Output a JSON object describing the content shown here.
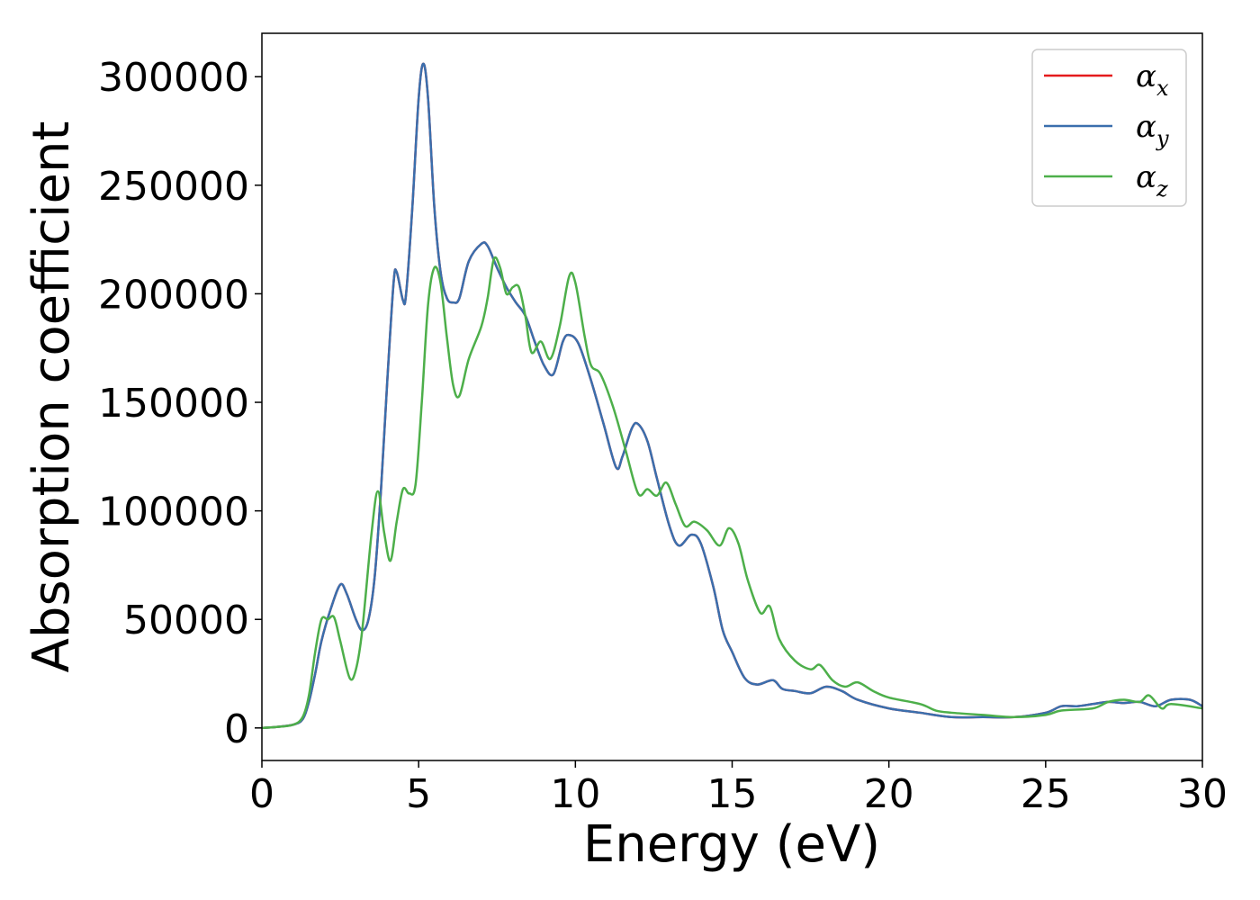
{
  "chart_data": {
    "type": "line",
    "title": "",
    "xlabel": "Energy (eV)",
    "ylabel": "Absorption coefficient",
    "xlim": [
      0,
      30
    ],
    "ylim": [
      -15000,
      320000
    ],
    "xticks": [
      0,
      5,
      10,
      15,
      20,
      25,
      30
    ],
    "yticks": [
      0,
      50000,
      100000,
      150000,
      200000,
      250000,
      300000
    ],
    "grid": false,
    "legend_position": "top-right",
    "legend_symbol": "α",
    "series": [
      {
        "name": "x",
        "color": "#e41a1c",
        "points": [
          [
            0,
            0
          ],
          [
            0.5,
            500
          ],
          [
            1,
            1500
          ],
          [
            1.3,
            4000
          ],
          [
            1.5,
            12000
          ],
          [
            1.7,
            25000
          ],
          [
            1.9,
            40000
          ],
          [
            2.2,
            55000
          ],
          [
            2.5,
            66000
          ],
          [
            2.7,
            62000
          ],
          [
            3,
            50000
          ],
          [
            3.2,
            45000
          ],
          [
            3.4,
            50000
          ],
          [
            3.6,
            70000
          ],
          [
            3.8,
            110000
          ],
          [
            4,
            160000
          ],
          [
            4.2,
            205000
          ],
          [
            4.3,
            210000
          ],
          [
            4.5,
            197000
          ],
          [
            4.6,
            200000
          ],
          [
            4.8,
            240000
          ],
          [
            5,
            290000
          ],
          [
            5.15,
            306000
          ],
          [
            5.3,
            290000
          ],
          [
            5.5,
            240000
          ],
          [
            5.7,
            210000
          ],
          [
            5.9,
            198000
          ],
          [
            6.1,
            196000
          ],
          [
            6.3,
            198000
          ],
          [
            6.6,
            215000
          ],
          [
            7,
            223000
          ],
          [
            7.2,
            222000
          ],
          [
            7.5,
            212000
          ],
          [
            7.8,
            203000
          ],
          [
            8.1,
            196000
          ],
          [
            8.4,
            190000
          ],
          [
            8.7,
            178000
          ],
          [
            9,
            167000
          ],
          [
            9.3,
            163000
          ],
          [
            9.6,
            178000
          ],
          [
            9.8,
            181000
          ],
          [
            10.1,
            177000
          ],
          [
            10.5,
            160000
          ],
          [
            10.9,
            140000
          ],
          [
            11.3,
            120000
          ],
          [
            11.5,
            125000
          ],
          [
            11.8,
            138000
          ],
          [
            12,
            140000
          ],
          [
            12.3,
            132000
          ],
          [
            12.6,
            115000
          ],
          [
            13,
            93000
          ],
          [
            13.3,
            84000
          ],
          [
            13.7,
            89000
          ],
          [
            14,
            85000
          ],
          [
            14.4,
            65000
          ],
          [
            14.7,
            45000
          ],
          [
            15,
            35000
          ],
          [
            15.4,
            23000
          ],
          [
            15.8,
            20000
          ],
          [
            16.3,
            22000
          ],
          [
            16.6,
            18000
          ],
          [
            17,
            17000
          ],
          [
            17.5,
            16000
          ],
          [
            18,
            19000
          ],
          [
            18.5,
            17000
          ],
          [
            19,
            13000
          ],
          [
            20,
            9000
          ],
          [
            21,
            7000
          ],
          [
            22,
            5000
          ],
          [
            23,
            5000
          ],
          [
            24,
            5000
          ],
          [
            25,
            7000
          ],
          [
            25.5,
            10000
          ],
          [
            26,
            10000
          ],
          [
            26.5,
            11000
          ],
          [
            27,
            12000
          ],
          [
            27.5,
            11500
          ],
          [
            28,
            12000
          ],
          [
            28.5,
            10000
          ],
          [
            29,
            13000
          ],
          [
            29.6,
            13000
          ],
          [
            30,
            10000
          ]
        ]
      },
      {
        "name": "y",
        "color": "#3a6fad",
        "points": [
          [
            0,
            0
          ],
          [
            0.5,
            500
          ],
          [
            1,
            1500
          ],
          [
            1.3,
            4000
          ],
          [
            1.5,
            12000
          ],
          [
            1.7,
            25000
          ],
          [
            1.9,
            40000
          ],
          [
            2.2,
            55000
          ],
          [
            2.5,
            66000
          ],
          [
            2.7,
            62000
          ],
          [
            3,
            50000
          ],
          [
            3.2,
            45000
          ],
          [
            3.4,
            50000
          ],
          [
            3.6,
            70000
          ],
          [
            3.8,
            110000
          ],
          [
            4,
            160000
          ],
          [
            4.2,
            205000
          ],
          [
            4.3,
            210000
          ],
          [
            4.5,
            197000
          ],
          [
            4.6,
            200000
          ],
          [
            4.8,
            240000
          ],
          [
            5,
            290000
          ],
          [
            5.15,
            306000
          ],
          [
            5.3,
            290000
          ],
          [
            5.5,
            240000
          ],
          [
            5.7,
            210000
          ],
          [
            5.9,
            198000
          ],
          [
            6.1,
            196000
          ],
          [
            6.3,
            198000
          ],
          [
            6.6,
            215000
          ],
          [
            7,
            223000
          ],
          [
            7.2,
            222000
          ],
          [
            7.5,
            212000
          ],
          [
            7.8,
            203000
          ],
          [
            8.1,
            196000
          ],
          [
            8.4,
            190000
          ],
          [
            8.7,
            178000
          ],
          [
            9,
            167000
          ],
          [
            9.3,
            163000
          ],
          [
            9.6,
            178000
          ],
          [
            9.8,
            181000
          ],
          [
            10.1,
            177000
          ],
          [
            10.5,
            160000
          ],
          [
            10.9,
            140000
          ],
          [
            11.3,
            120000
          ],
          [
            11.5,
            125000
          ],
          [
            11.8,
            138000
          ],
          [
            12,
            140000
          ],
          [
            12.3,
            132000
          ],
          [
            12.6,
            115000
          ],
          [
            13,
            93000
          ],
          [
            13.3,
            84000
          ],
          [
            13.7,
            89000
          ],
          [
            14,
            85000
          ],
          [
            14.4,
            65000
          ],
          [
            14.7,
            45000
          ],
          [
            15,
            35000
          ],
          [
            15.4,
            23000
          ],
          [
            15.8,
            20000
          ],
          [
            16.3,
            22000
          ],
          [
            16.6,
            18000
          ],
          [
            17,
            17000
          ],
          [
            17.5,
            16000
          ],
          [
            18,
            19000
          ],
          [
            18.5,
            17000
          ],
          [
            19,
            13000
          ],
          [
            20,
            9000
          ],
          [
            21,
            7000
          ],
          [
            22,
            5000
          ],
          [
            23,
            5000
          ],
          [
            24,
            5000
          ],
          [
            25,
            7000
          ],
          [
            25.5,
            10000
          ],
          [
            26,
            10000
          ],
          [
            26.5,
            11000
          ],
          [
            27,
            12000
          ],
          [
            27.5,
            11500
          ],
          [
            28,
            12000
          ],
          [
            28.5,
            10000
          ],
          [
            29,
            13000
          ],
          [
            29.6,
            13000
          ],
          [
            30,
            10000
          ]
        ]
      },
      {
        "name": "z",
        "color": "#4daf4a",
        "points": [
          [
            0,
            0
          ],
          [
            0.5,
            500
          ],
          [
            1,
            1500
          ],
          [
            1.3,
            5000
          ],
          [
            1.5,
            15000
          ],
          [
            1.7,
            35000
          ],
          [
            1.9,
            50000
          ],
          [
            2.1,
            50000
          ],
          [
            2.3,
            51000
          ],
          [
            2.5,
            40000
          ],
          [
            2.8,
            23000
          ],
          [
            3,
            27000
          ],
          [
            3.2,
            45000
          ],
          [
            3.5,
            90000
          ],
          [
            3.7,
            109000
          ],
          [
            3.9,
            90000
          ],
          [
            4.1,
            77000
          ],
          [
            4.3,
            95000
          ],
          [
            4.5,
            110000
          ],
          [
            4.7,
            108000
          ],
          [
            4.9,
            112000
          ],
          [
            5.1,
            150000
          ],
          [
            5.3,
            195000
          ],
          [
            5.5,
            212000
          ],
          [
            5.7,
            205000
          ],
          [
            5.9,
            180000
          ],
          [
            6.1,
            158000
          ],
          [
            6.3,
            153000
          ],
          [
            6.6,
            170000
          ],
          [
            7,
            185000
          ],
          [
            7.2,
            198000
          ],
          [
            7.4,
            216000
          ],
          [
            7.6,
            212000
          ],
          [
            7.8,
            200000
          ],
          [
            8,
            203000
          ],
          [
            8.2,
            203000
          ],
          [
            8.4,
            190000
          ],
          [
            8.6,
            173000
          ],
          [
            8.9,
            178000
          ],
          [
            9.2,
            170000
          ],
          [
            9.5,
            185000
          ],
          [
            9.8,
            208000
          ],
          [
            10,
            205000
          ],
          [
            10.3,
            180000
          ],
          [
            10.5,
            167000
          ],
          [
            10.8,
            163000
          ],
          [
            11.2,
            148000
          ],
          [
            11.6,
            128000
          ],
          [
            12,
            108000
          ],
          [
            12.3,
            110000
          ],
          [
            12.6,
            107000
          ],
          [
            12.9,
            113000
          ],
          [
            13.2,
            103000
          ],
          [
            13.5,
            93000
          ],
          [
            13.8,
            95000
          ],
          [
            14.2,
            91000
          ],
          [
            14.6,
            84000
          ],
          [
            14.9,
            92000
          ],
          [
            15.2,
            85000
          ],
          [
            15.5,
            68000
          ],
          [
            15.9,
            53000
          ],
          [
            16.2,
            56000
          ],
          [
            16.5,
            41000
          ],
          [
            17,
            31000
          ],
          [
            17.5,
            27000
          ],
          [
            17.8,
            29000
          ],
          [
            18.2,
            22000
          ],
          [
            18.6,
            19000
          ],
          [
            19,
            21000
          ],
          [
            19.5,
            17000
          ],
          [
            20,
            14000
          ],
          [
            21,
            11000
          ],
          [
            21.5,
            8000
          ],
          [
            22,
            7000
          ],
          [
            23,
            6000
          ],
          [
            24,
            5000
          ],
          [
            25,
            6000
          ],
          [
            25.5,
            8000
          ],
          [
            26.5,
            9000
          ],
          [
            27,
            12000
          ],
          [
            27.5,
            13000
          ],
          [
            28,
            12000
          ],
          [
            28.3,
            15000
          ],
          [
            28.7,
            9000
          ],
          [
            29,
            11000
          ],
          [
            30,
            9000
          ]
        ]
      }
    ]
  }
}
